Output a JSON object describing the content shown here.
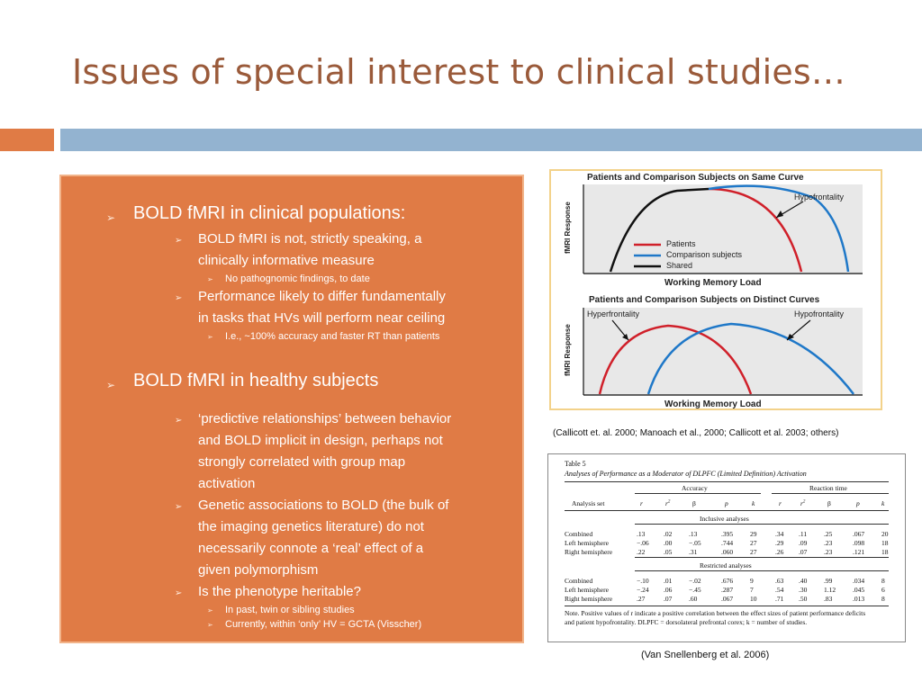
{
  "slide": {
    "title": "Issues of special interest to clinical studies…"
  },
  "bullets": {
    "b1": "BOLD fMRI in clinical populations:",
    "b1_1_line1": "BOLD fMRI is not, strictly speaking, a",
    "b1_1_line2": "clinically informative measure",
    "b1_1_1": "No pathognomic findings, to date",
    "b1_2_line1": "Performance likely to differ fundamentally",
    "b1_2_line2": "in tasks that HVs will perform near ceiling",
    "b1_2_1": "I.e., ~100% accuracy and faster RT than patients",
    "b2": "BOLD fMRI in healthy subjects",
    "b2_1_line1": "‘predictive relationships’ between behavior",
    "b2_1_line2": "and BOLD implicit in design, perhaps not",
    "b2_1_line3": "strongly correlated with group map",
    "b2_1_line4": "activation",
    "b2_2_line1": "Genetic associations to BOLD (the bulk of",
    "b2_2_line2": "the imaging genetics literature) do not",
    "b2_2_line3": "necessarily connote a ‘real’ effect of a",
    "b2_2_line4": "given polymorphism",
    "b2_3": "Is the phenotype heritable?",
    "b2_3_1": "In past, twin or sibling studies",
    "b2_3_2": "Currently, within ‘only’ HV = GCTA (Visscher)"
  },
  "figure1": {
    "top_title": "Patients and Comparison Subjects on Same Curve",
    "bottom_title": "Patients and Comparison Subjects on Distinct Curves",
    "ylabel": "fMRI Response",
    "xlabel": "Working Memory Load",
    "hypofrontality": "Hypofrontality",
    "hyperfrontality": "Hyperfrontality",
    "legend_patients": "Patients",
    "legend_comparison": "Comparison subjects",
    "legend_shared": "Shared",
    "colors": {
      "patients": "#d0202a",
      "comparison": "#1f78c8",
      "shared": "#111111"
    }
  },
  "citation1": "(Callicott et. al. 2000; Manoach et al., 2000; Callicott et al. 2003; others)",
  "table5": {
    "label": "Table 5",
    "caption": "Analyses of Performance as a Moderator of DLPFC (Limited Definition) Activation",
    "group_accuracy": "Accuracy",
    "group_rt": "Reaction time",
    "col_analysis": "Analysis set",
    "col_r": "r",
    "col_r2": "r",
    "col_r2_sup": "2",
    "col_beta": "β",
    "col_p": "p",
    "col_k": "k",
    "section_inclusive": "Inclusive analyses",
    "section_restricted": "Restricted analyses",
    "inclusive_rows": [
      {
        "label": "Combined",
        "a_r": ".13",
        "a_r2": ".02",
        "a_b": ".13",
        "a_p": ".395",
        "a_k": "29",
        "t_r": ".34",
        "t_r2": ".11",
        "t_b": ".25",
        "t_p": ".067",
        "t_k": "20"
      },
      {
        "label": "Left hemisphere",
        "a_r": "−.06",
        "a_r2": ".00",
        "a_b": "−.05",
        "a_p": ".744",
        "a_k": "27",
        "t_r": ".29",
        "t_r2": ".09",
        "t_b": ".23",
        "t_p": ".098",
        "t_k": "18"
      },
      {
        "label": "Right hemisphere",
        "a_r": ".22",
        "a_r2": ".05",
        "a_b": ".31",
        "a_p": ".060",
        "a_k": "27",
        "t_r": ".26",
        "t_r2": ".07",
        "t_b": ".23",
        "t_p": ".121",
        "t_k": "18"
      }
    ],
    "restricted_rows": [
      {
        "label": "Combined",
        "a_r": "−.10",
        "a_r2": ".01",
        "a_b": "−.02",
        "a_p": ".676",
        "a_k": "9",
        "t_r": ".63",
        "t_r2": ".40",
        "t_b": ".99",
        "t_p": ".034",
        "t_k": "8"
      },
      {
        "label": "Left hemisphere",
        "a_r": "−.24",
        "a_r2": ".06",
        "a_b": "−.45",
        "a_p": ".287",
        "a_k": "7",
        "t_r": ".54",
        "t_r2": ".30",
        "t_b": "1.12",
        "t_p": ".045",
        "t_k": "6"
      },
      {
        "label": "Right hemisphere",
        "a_r": ".27",
        "a_r2": ".07",
        "a_b": ".60",
        "a_p": ".067",
        "a_k": "10",
        "t_r": ".71",
        "t_r2": ".50",
        "t_b": ".83",
        "t_p": ".013",
        "t_k": "8"
      }
    ],
    "note_line1": "Note.   Positive values of r indicate a positive correlation between the effect sizes of patient performance deficits",
    "note_line2": "and patient hypofrontality. DLPFC = dorsolateral prefrontal corex; k = number of studies."
  },
  "citation2": "(Van Snellenberg et al. 2006)"
}
